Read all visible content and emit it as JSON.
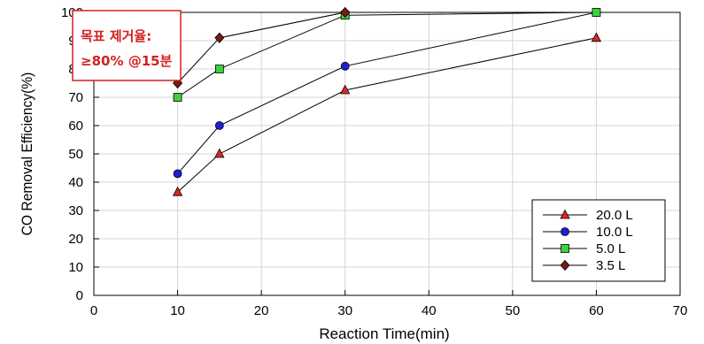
{
  "chart_data": {
    "type": "line",
    "title": "",
    "xlabel": "Reaction Time(min)",
    "ylabel": "CO Removal Efficiency(%)",
    "xlim": [
      0,
      70
    ],
    "ylim": [
      0,
      100
    ],
    "xticks": [
      0,
      10,
      20,
      30,
      40,
      50,
      60,
      70
    ],
    "yticks": [
      0,
      10,
      20,
      30,
      40,
      50,
      60,
      70,
      80,
      90,
      100
    ],
    "grid": true,
    "legend_position": "bottom-right",
    "annotation": {
      "lines": [
        "목표 제거율:",
        "≥80% @15분"
      ],
      "color": "#d42020"
    },
    "series": [
      {
        "name": "20.0 L",
        "marker": "triangle",
        "color": "#e02424",
        "x": [
          10,
          15,
          30,
          60
        ],
        "y": [
          36.5,
          50,
          72.5,
          91
        ]
      },
      {
        "name": "10.0 L",
        "marker": "circle",
        "color": "#1f1fd6",
        "x": [
          10,
          15,
          30,
          60
        ],
        "y": [
          43,
          60,
          81,
          100
        ]
      },
      {
        "name": "5.0 L",
        "marker": "square",
        "color": "#3cd23c",
        "x": [
          10,
          15,
          30,
          60
        ],
        "y": [
          70,
          80,
          99,
          100
        ]
      },
      {
        "name": "3.5 L",
        "marker": "diamond",
        "color": "#7a1a10",
        "x": [
          10,
          15,
          30,
          55
        ],
        "y": [
          75,
          91,
          100,
          100
        ]
      }
    ]
  }
}
